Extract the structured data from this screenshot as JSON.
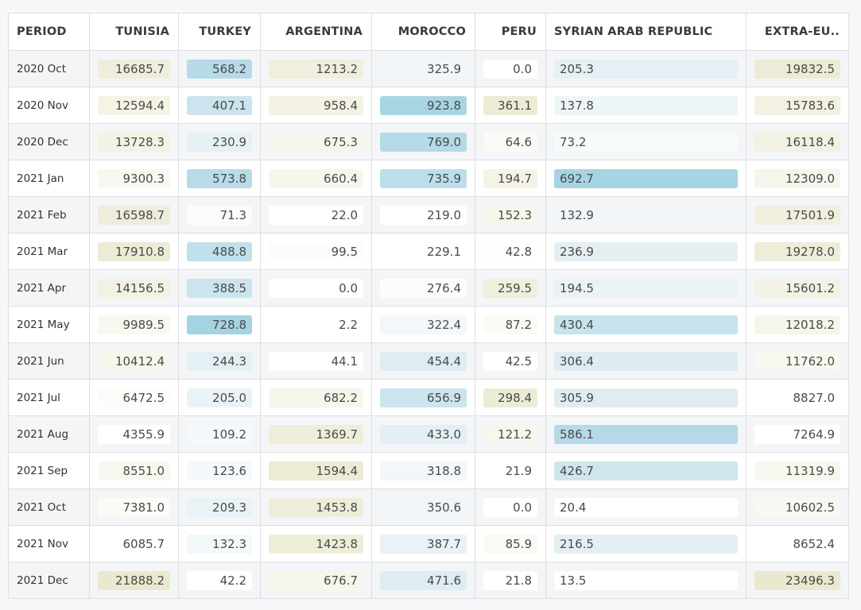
{
  "columns": [
    "PERIOD",
    "TUNISIA",
    "TURKEY",
    "ARGENTINA",
    "MOROCCO",
    "PERU",
    "SYRIAN ARAB REPUBLIC",
    "EXTRA-EU.."
  ],
  "colors": {
    "heat_blue": "#a4d3e1",
    "heat_olive": "#e9e8c9"
  },
  "rows": [
    {
      "period": "2020 Oct",
      "values": [
        "16685.7",
        "568.2",
        "1213.2",
        "325.9",
        "0.0",
        "205.3",
        "19832.5"
      ],
      "shades": [
        "#efeedd",
        "#b6dae7",
        "#f0efde",
        "#f1f7f9",
        "#ffffff",
        "#e6f0f4",
        "#ecebd5"
      ]
    },
    {
      "period": "2020 Nov",
      "values": [
        "12594.4",
        "407.1",
        "958.4",
        "923.8",
        "361.1",
        "137.8",
        "15783.6"
      ],
      "shades": [
        "#f4f3e6",
        "#cbe4ee",
        "#f3f2e4",
        "#a8d5e3",
        "#ecebd4",
        "#eef5f8",
        "#f2f1e2"
      ]
    },
    {
      "period": "2020 Dec",
      "values": [
        "13728.3",
        "230.9",
        "675.3",
        "769.0",
        "64.6",
        "73.2",
        "16118.4"
      ],
      "shades": [
        "#f3f2e4",
        "#e6f1f5",
        "#f6f6ec",
        "#b5dae7",
        "#fbfbf6",
        "#f7fafb",
        "#f2f1e2"
      ]
    },
    {
      "period": "2021 Jan",
      "values": [
        "9300.3",
        "573.8",
        "660.4",
        "735.9",
        "194.7",
        "692.7",
        "12309.0"
      ],
      "shades": [
        "#f8f8f0",
        "#b8dbe8",
        "#f6f6ec",
        "#bcdeea",
        "#f4f3e6",
        "#a6d4e2",
        "#f6f5eb"
      ]
    },
    {
      "period": "2021 Feb",
      "values": [
        "16598.7",
        "71.3",
        "22.0",
        "219.0",
        "152.3",
        "132.9",
        "17501.9"
      ],
      "shades": [
        "#eeeddb",
        "#f9fbfc",
        "#ffffff",
        "#ffffff",
        "#f6f6ec",
        "#f1f6f8",
        "#f1f0df"
      ]
    },
    {
      "period": "2021 Mar",
      "values": [
        "17910.8",
        "488.8",
        "99.5",
        "229.1",
        "42.8",
        "236.9",
        "19278.0"
      ],
      "shades": [
        "#ecebd5",
        "#c0e0eb",
        "#fcfcfa",
        "#ffffff",
        "#fefefd",
        "#e5eff3",
        "#eeedda"
      ]
    },
    {
      "period": "2021 Apr",
      "values": [
        "14156.5",
        "388.5",
        "0.0",
        "276.4",
        "259.5",
        "194.5",
        "15601.2"
      ],
      "shades": [
        "#f2f1e2",
        "#cbe4ee",
        "#ffffff",
        "#fafcfd",
        "#f0efdc",
        "#e9f2f5",
        "#f3f2e5"
      ]
    },
    {
      "period": "2021 May",
      "values": [
        "9989.5",
        "728.8",
        "2.2",
        "322.4",
        "87.2",
        "430.4",
        "12018.2"
      ],
      "shades": [
        "#f8f8f0",
        "#a4d3e1",
        "#ffffff",
        "#f2f8fa",
        "#fbfbf6",
        "#c9e3ec",
        "#f6f5eb"
      ]
    },
    {
      "period": "2021 Jun",
      "values": [
        "10412.4",
        "244.3",
        "44.1",
        "454.4",
        "42.5",
        "306.4",
        "11762.0"
      ],
      "shades": [
        "#f6f6ec",
        "#e4f0f4",
        "#ffffff",
        "#deedf2",
        "#ffffff",
        "#ddecf1",
        "#f8f8f0"
      ]
    },
    {
      "period": "2021 Jul",
      "values": [
        "6472.5",
        "205.0",
        "682.2",
        "656.9",
        "298.4",
        "305.9",
        "8827.0"
      ],
      "shades": [
        "#fcfcf8",
        "#e9f3f7",
        "#f6f6eb",
        "#cbe4ee",
        "#ecebd5",
        "#dfedf2",
        "#ffffff"
      ]
    },
    {
      "period": "2021 Aug",
      "values": [
        "4355.9",
        "109.2",
        "1369.7",
        "433.0",
        "121.2",
        "586.1",
        "7264.9"
      ],
      "shades": [
        "#ffffff",
        "#f5f9fb",
        "#efeedb",
        "#e2eff4",
        "#f7f7ee",
        "#b5dae7",
        "#ffffff"
      ]
    },
    {
      "period": "2021 Sep",
      "values": [
        "8551.0",
        "123.6",
        "1594.4",
        "318.8",
        "21.9",
        "426.7",
        "11319.9"
      ],
      "shades": [
        "#f8f8f0",
        "#f4f9fb",
        "#ecebd4",
        "#f1f7fa",
        "#ffffff",
        "#cfe6ee",
        "#f7f7ef"
      ]
    },
    {
      "period": "2021 Oct",
      "values": [
        "7381.0",
        "209.3",
        "1453.8",
        "350.6",
        "0.0",
        "20.4",
        "10602.5"
      ],
      "shades": [
        "#fbfbf6",
        "#e9f3f7",
        "#eeedda",
        "#eff5f8",
        "#ffffff",
        "#ffffff",
        "#f8f8f0"
      ]
    },
    {
      "period": "2021 Nov",
      "values": [
        "6085.7",
        "132.3",
        "1423.8",
        "387.7",
        "85.9",
        "216.5",
        "8652.4"
      ],
      "shades": [
        "#ffffff",
        "#f3f8fa",
        "#eeedd8",
        "#e9f2f6",
        "#fafaf4",
        "#e3eff3",
        "#ffffff"
      ]
    },
    {
      "period": "2021 Dec",
      "values": [
        "21888.2",
        "42.2",
        "676.7",
        "471.6",
        "21.8",
        "13.5",
        "23496.3"
      ],
      "shades": [
        "#eae9cf",
        "#ffffff",
        "#f6f6eb",
        "#dfedf2",
        "#ffffff",
        "#ffffff",
        "#eae9cf"
      ]
    }
  ]
}
